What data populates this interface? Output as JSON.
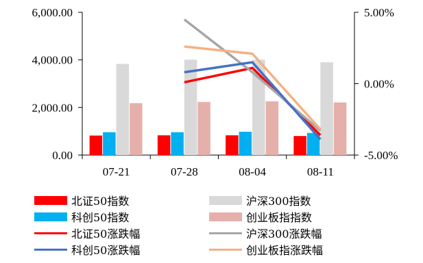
{
  "chart_data": {
    "type": "bar",
    "categories": [
      "07-21",
      "07-28",
      "08-04",
      "08-11"
    ],
    "y_left": {
      "ylim": [
        0,
        6000
      ],
      "ticks": [
        "0.00",
        "2,000.00",
        "4,000.00",
        "6,000.00"
      ],
      "tick_values": [
        0,
        2000,
        4000,
        6000
      ]
    },
    "y_right": {
      "ylim": [
        -5,
        5
      ],
      "ticks": [
        "-5.00%",
        "0.00%",
        "5.00%"
      ],
      "tick_values": [
        -5,
        0,
        5
      ]
    },
    "bar_series": [
      {
        "name": "北证50指数",
        "color": "#ff0000",
        "values": [
          820,
          830,
          830,
          800
        ]
      },
      {
        "name": "科创50指数",
        "color": "#00b0f0",
        "values": [
          960,
          960,
          980,
          930
        ]
      },
      {
        "name": "沪深300指数",
        "color": "#d9d9d9",
        "values": [
          3830,
          4010,
          4010,
          3900
        ]
      },
      {
        "name": "创业板指指数",
        "color": "#e6b0aa",
        "values": [
          2180,
          2230,
          2260,
          2210
        ]
      }
    ],
    "line_series": [
      {
        "name": "北证50涨跌幅",
        "color": "#ff0000",
        "values": [
          null,
          0.1,
          1.1,
          -3.6
        ]
      },
      {
        "name": "沪深300涨跌幅",
        "color": "#a6a6a6",
        "values": [
          null,
          4.5,
          0.8,
          -3.3
        ]
      },
      {
        "name": "科创50涨跌幅",
        "color": "#4472c4",
        "values": [
          null,
          0.8,
          1.5,
          -3.9
        ]
      },
      {
        "name": "创业板指涨跌幅",
        "color": "#f4b183",
        "values": [
          null,
          2.6,
          2.1,
          -3.2
        ]
      }
    ],
    "legend": {
      "placement": "bottom",
      "items": [
        {
          "label": "北证50指数",
          "kind": "bar",
          "color": "#ff0000"
        },
        {
          "label": "沪深300指数",
          "kind": "bar",
          "color": "#d9d9d9"
        },
        {
          "label": "科创50指数",
          "kind": "bar",
          "color": "#00b0f0"
        },
        {
          "label": "创业板指指数",
          "kind": "bar",
          "color": "#e6b0aa"
        },
        {
          "label": "北证50涨跌幅",
          "kind": "line",
          "color": "#ff0000"
        },
        {
          "label": "沪深300涨跌幅",
          "kind": "line",
          "color": "#a6a6a6"
        },
        {
          "label": "科创50涨跌幅",
          "kind": "line",
          "color": "#4472c4"
        },
        {
          "label": "创业板指涨跌幅",
          "kind": "line",
          "color": "#f4b183"
        }
      ]
    },
    "grid": false
  }
}
